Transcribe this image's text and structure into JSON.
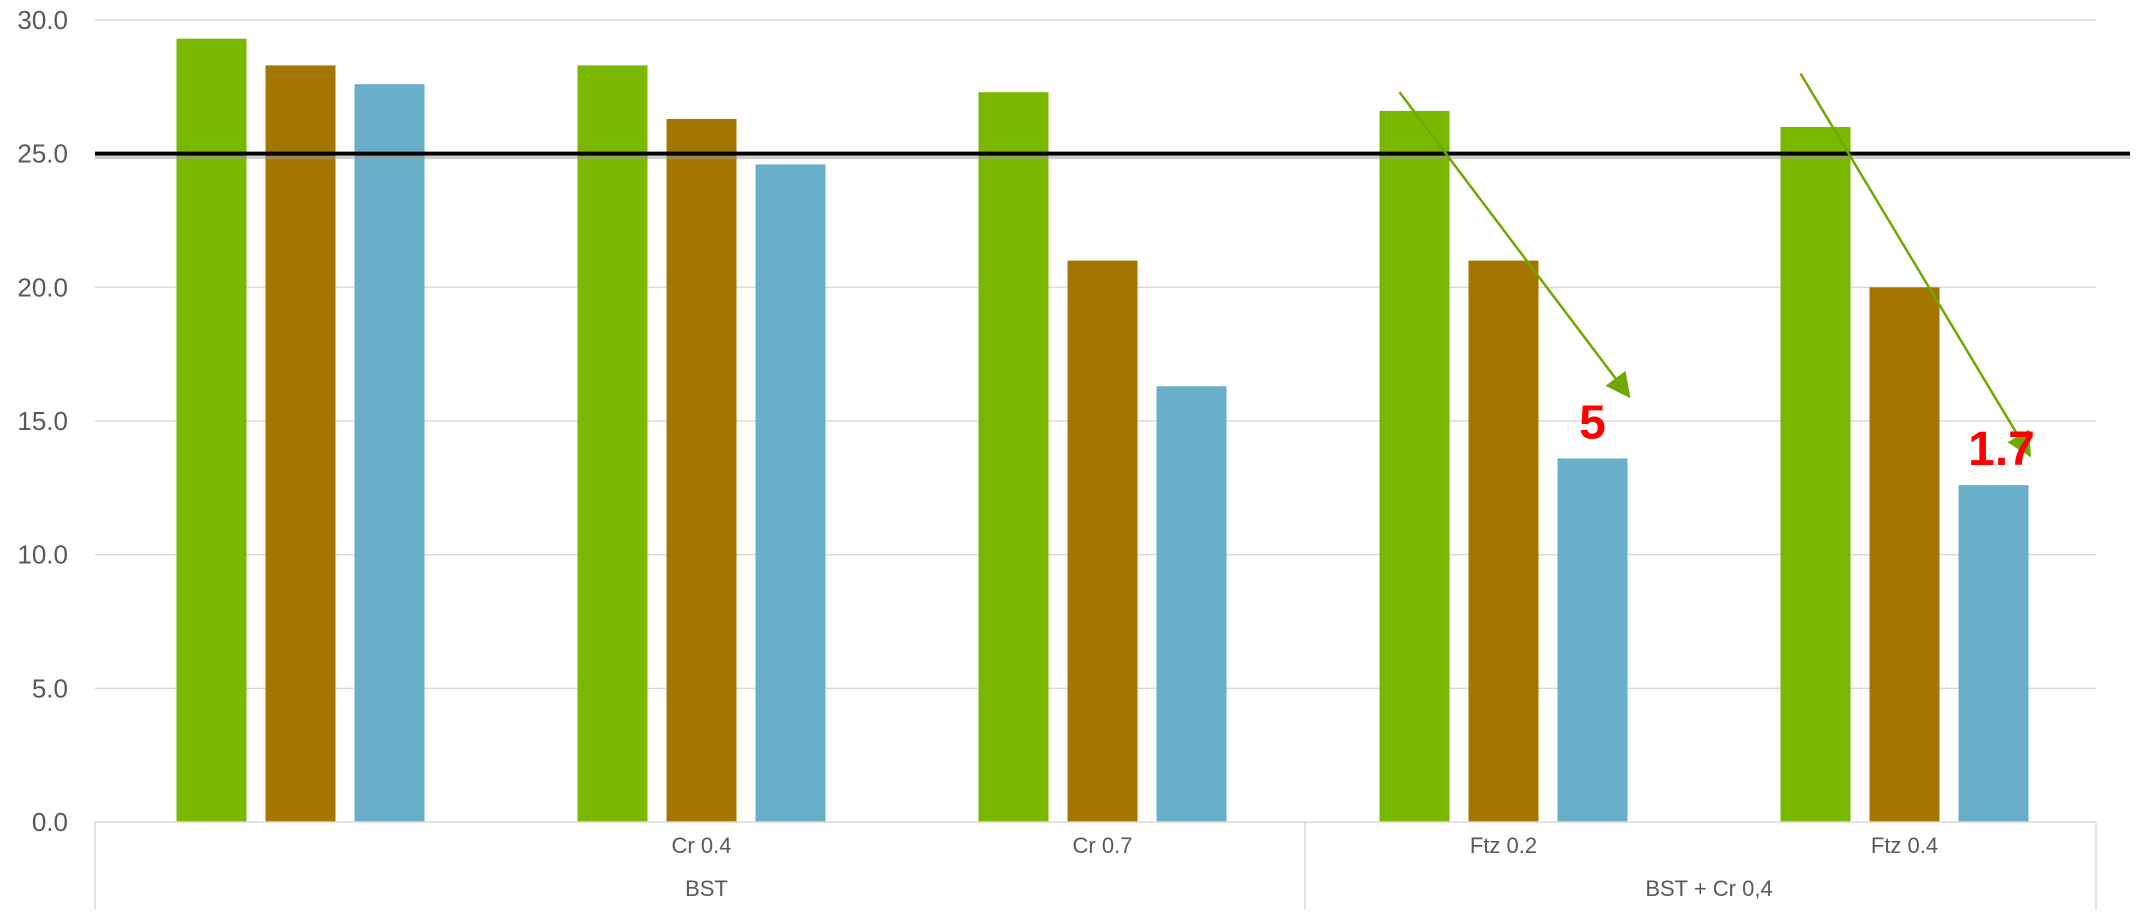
{
  "chart_data": {
    "type": "bar",
    "title": "",
    "xlabel": "",
    "ylabel": "",
    "ylim": [
      0,
      30
    ],
    "y_ticks": [
      "0.0",
      "5.0",
      "10.0",
      "15.0",
      "20.0",
      "25.0",
      "30.0"
    ],
    "grid": true,
    "legend": "none",
    "categories": [
      "",
      "Cr 0.4",
      "Cr 0.7",
      "Ftz 0.2",
      "Ftz 0.4"
    ],
    "groups": [
      {
        "label": "BST",
        "categories": [
          "",
          "Cr 0.4",
          "Cr 0.7"
        ]
      },
      {
        "label": "BST + Cr 0,4",
        "categories": [
          "Ftz 0.2",
          "Ftz 0.4"
        ]
      }
    ],
    "series": [
      {
        "color": "#7ab800",
        "values": [
          29.3,
          28.3,
          27.3,
          26.6,
          26.0
        ]
      },
      {
        "color": "#a47600",
        "values": [
          28.3,
          26.3,
          21.0,
          21.0,
          20.0
        ]
      },
      {
        "color": "#6aafca",
        "values": [
          27.6,
          24.6,
          16.3,
          13.6,
          12.6
        ]
      }
    ],
    "reference_line": {
      "y": 25.0,
      "color": "#000000"
    },
    "annotations": [
      {
        "text": "5",
        "category": "Ftz 0.2",
        "color": "#ff0000"
      },
      {
        "text": "1.7",
        "category": "Ftz 0.4",
        "color": "#ff0000"
      }
    ],
    "arrows": [
      {
        "category": "Ftz 0.2",
        "from_y": 27.3,
        "to_y": 16.0,
        "color": "#6ea800"
      },
      {
        "category": "Ftz 0.4",
        "from_y": 28.0,
        "to_y": 13.8,
        "color": "#6ea800"
      }
    ]
  }
}
